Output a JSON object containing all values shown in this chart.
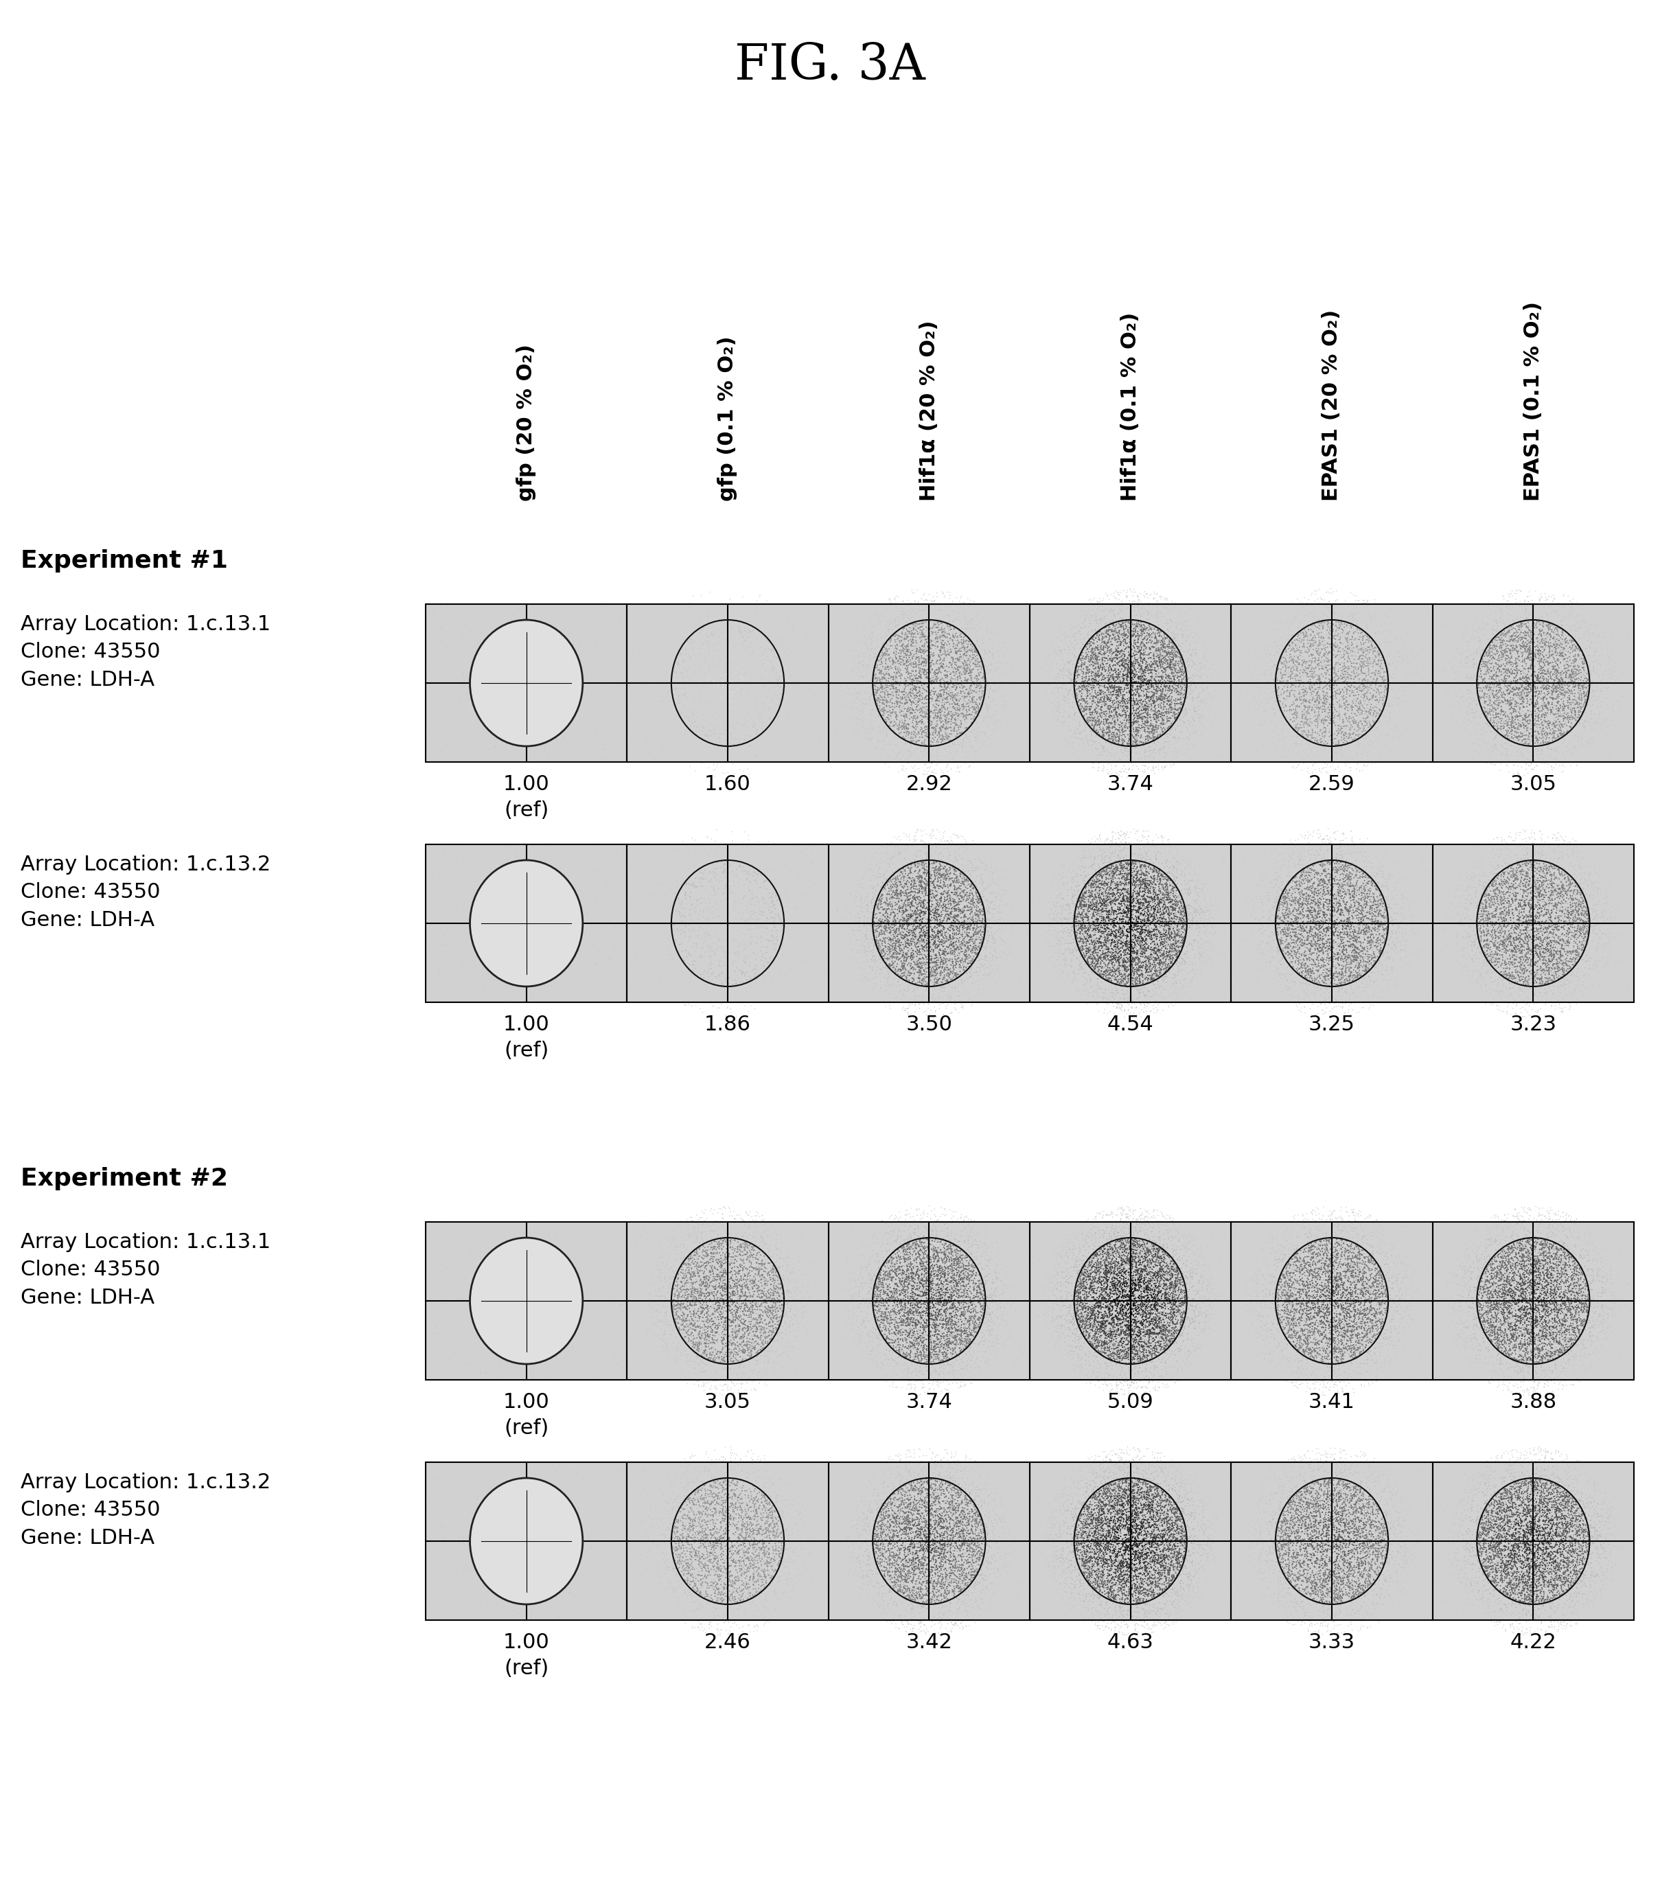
{
  "title": "FIG. 3A",
  "background_color": "#ffffff",
  "column_labels": [
    "gfp (20 % O₂)",
    "gfp (0.1 % O₂)",
    "Hif1α (20 % O₂)",
    "Hif1α (0.1 % O₂)",
    "EPAS1 (20 % O₂)",
    "EPAS1 (0.1 % O₂)"
  ],
  "rows": [
    {
      "exp_label": "Experiment #1",
      "show_exp_label": true,
      "array_location": "Array Location: 1.c.13.1",
      "clone": "Clone: 43550",
      "gene": "Gene: LDH-A",
      "values": [
        "1.00",
        "1.60",
        "2.92",
        "3.74",
        "2.59",
        "3.05"
      ],
      "show_ref": true,
      "intensities": [
        0.03,
        0.1,
        0.52,
        0.72,
        0.42,
        0.55
      ]
    },
    {
      "exp_label": "",
      "show_exp_label": false,
      "array_location": "Array Location: 1.c.13.2",
      "clone": "Clone: 43550",
      "gene": "Gene: LDH-A",
      "values": [
        "1.00",
        "1.86",
        "3.50",
        "4.54",
        "3.25",
        "3.23"
      ],
      "show_ref": true,
      "intensities": [
        0.05,
        0.15,
        0.68,
        0.85,
        0.62,
        0.62
      ]
    },
    {
      "exp_label": "Experiment #2",
      "show_exp_label": true,
      "array_location": "Array Location: 1.c.13.1",
      "clone": "Clone: 43550",
      "gene": "Gene: LDH-A",
      "values": [
        "1.00",
        "3.05",
        "3.74",
        "5.09",
        "3.41",
        "3.88"
      ],
      "show_ref": true,
      "intensities": [
        0.03,
        0.55,
        0.7,
        0.92,
        0.65,
        0.75
      ]
    },
    {
      "exp_label": "",
      "show_exp_label": false,
      "array_location": "Array Location: 1.c.13.2",
      "clone": "Clone: 43550",
      "gene": "Gene: LDH-A",
      "values": [
        "1.00",
        "2.46",
        "3.42",
        "4.63",
        "3.33",
        "4.22"
      ],
      "show_ref": true,
      "intensities": [
        0.03,
        0.45,
        0.65,
        0.88,
        0.64,
        0.8
      ]
    }
  ],
  "n_cols": 6
}
